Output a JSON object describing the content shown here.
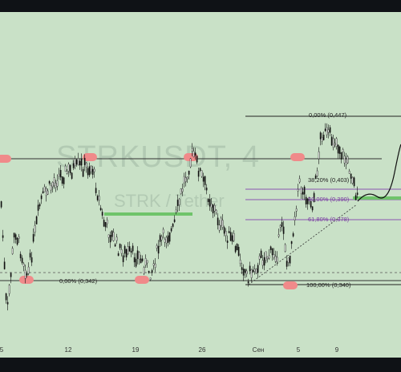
{
  "watermark": {
    "symbol": "STRKUSDT, 4",
    "subtitle": "STRK / Tether"
  },
  "x_axis": {
    "ticks": [
      "5",
      "12",
      "19",
      "26",
      "Сен",
      "5",
      "9"
    ]
  },
  "fib_levels": [
    {
      "label": "0,00% (0,447)",
      "price": 0.447
    },
    {
      "label": "38,20% (0,403)",
      "price": 0.403
    },
    {
      "label": "50,00% (0,390)",
      "price": 0.39
    },
    {
      "label": "61,80% (0,378)",
      "price": 0.378
    },
    {
      "label": "100,00% (0,340)",
      "price": 0.34
    }
  ],
  "left_level_label": "0,00% (0,342)",
  "colors": {
    "background": "#c9e1c7",
    "candles": "#111111",
    "resistance_marker": "#f08a8a",
    "support_zone": "#6fc46a",
    "fib_mid": "#8a55b0"
  }
}
